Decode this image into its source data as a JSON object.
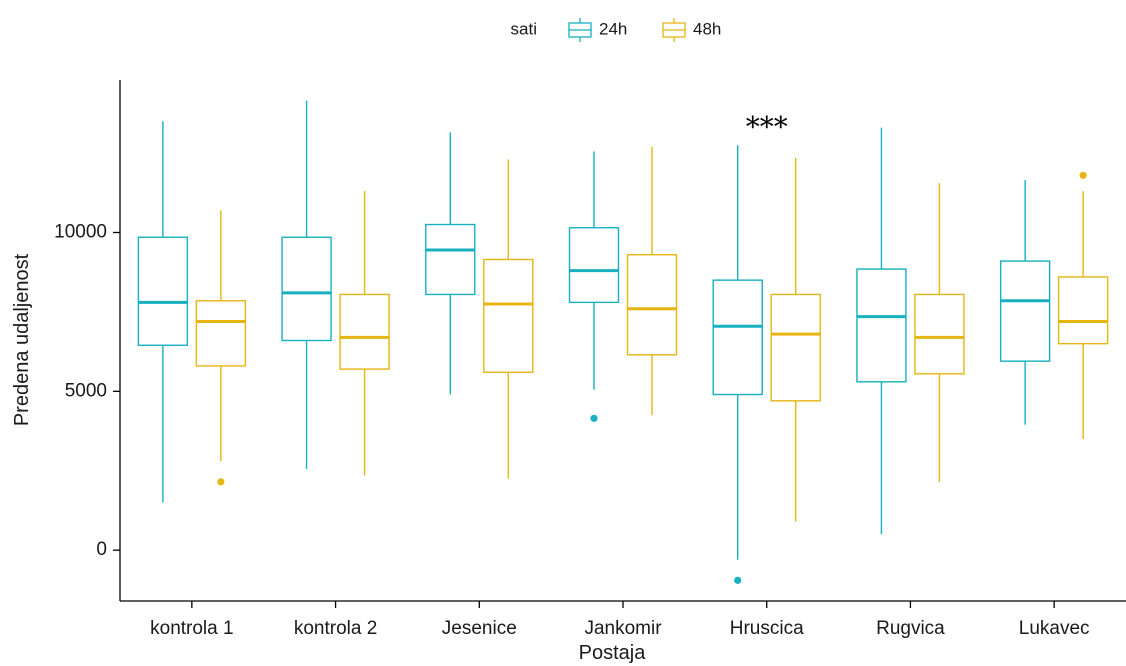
{
  "chart_data": {
    "type": "boxplot",
    "xlabel": "Postaja",
    "ylabel": "Predena udaljenost",
    "ylim": [
      -1600,
      14800
    ],
    "yticks": [
      0,
      5000,
      10000
    ],
    "grid": false,
    "legend": {
      "title": "sati",
      "position": "top"
    },
    "categories": [
      "kontrola 1",
      "kontrola 2",
      "Jesenice",
      "Jankomir",
      "Hruscica",
      "Rugvica",
      "Lukavec"
    ],
    "series": [
      {
        "name": "24h",
        "color": "#17b0c0",
        "boxes": [
          {
            "lower_whisker": 1500,
            "q1": 6450,
            "median": 7800,
            "q3": 9850,
            "upper_whisker": 13500,
            "outliers": []
          },
          {
            "lower_whisker": 2550,
            "q1": 6600,
            "median": 8100,
            "q3": 9850,
            "upper_whisker": 14150,
            "outliers": []
          },
          {
            "lower_whisker": 4900,
            "q1": 8050,
            "median": 9450,
            "q3": 10250,
            "upper_whisker": 13150,
            "outliers": []
          },
          {
            "lower_whisker": 5050,
            "q1": 7800,
            "median": 8800,
            "q3": 10150,
            "upper_whisker": 12550,
            "outliers": [
              4150
            ]
          },
          {
            "lower_whisker": -300,
            "q1": 4900,
            "median": 7050,
            "q3": 8500,
            "upper_whisker": 12750,
            "outliers": [
              -950
            ]
          },
          {
            "lower_whisker": 500,
            "q1": 5300,
            "median": 7350,
            "q3": 8850,
            "upper_whisker": 13300,
            "outliers": []
          },
          {
            "lower_whisker": 3950,
            "q1": 5950,
            "median": 7850,
            "q3": 9100,
            "upper_whisker": 11650,
            "outliers": []
          }
        ]
      },
      {
        "name": "48h",
        "color": "#e6b514",
        "boxes": [
          {
            "lower_whisker": 2800,
            "q1": 5800,
            "median": 7200,
            "q3": 7850,
            "upper_whisker": 10700,
            "outliers": [
              2150
            ]
          },
          {
            "lower_whisker": 2350,
            "q1": 5700,
            "median": 6700,
            "q3": 8050,
            "upper_whisker": 11300,
            "outliers": []
          },
          {
            "lower_whisker": 2250,
            "q1": 5600,
            "median": 7750,
            "q3": 9150,
            "upper_whisker": 12300,
            "outliers": []
          },
          {
            "lower_whisker": 4250,
            "q1": 6150,
            "median": 7600,
            "q3": 9300,
            "upper_whisker": 12700,
            "outliers": []
          },
          {
            "lower_whisker": 900,
            "q1": 4700,
            "median": 6800,
            "q3": 8050,
            "upper_whisker": 12350,
            "outliers": []
          },
          {
            "lower_whisker": 2150,
            "q1": 5550,
            "median": 6700,
            "q3": 8050,
            "upper_whisker": 11550,
            "outliers": []
          },
          {
            "lower_whisker": 3500,
            "q1": 6500,
            "median": 7200,
            "q3": 8600,
            "upper_whisker": 11300,
            "outliers": [
              11800
            ]
          }
        ]
      }
    ],
    "annotations": [
      {
        "text": "***",
        "category": "Hruscica",
        "y": 13400
      }
    ]
  }
}
